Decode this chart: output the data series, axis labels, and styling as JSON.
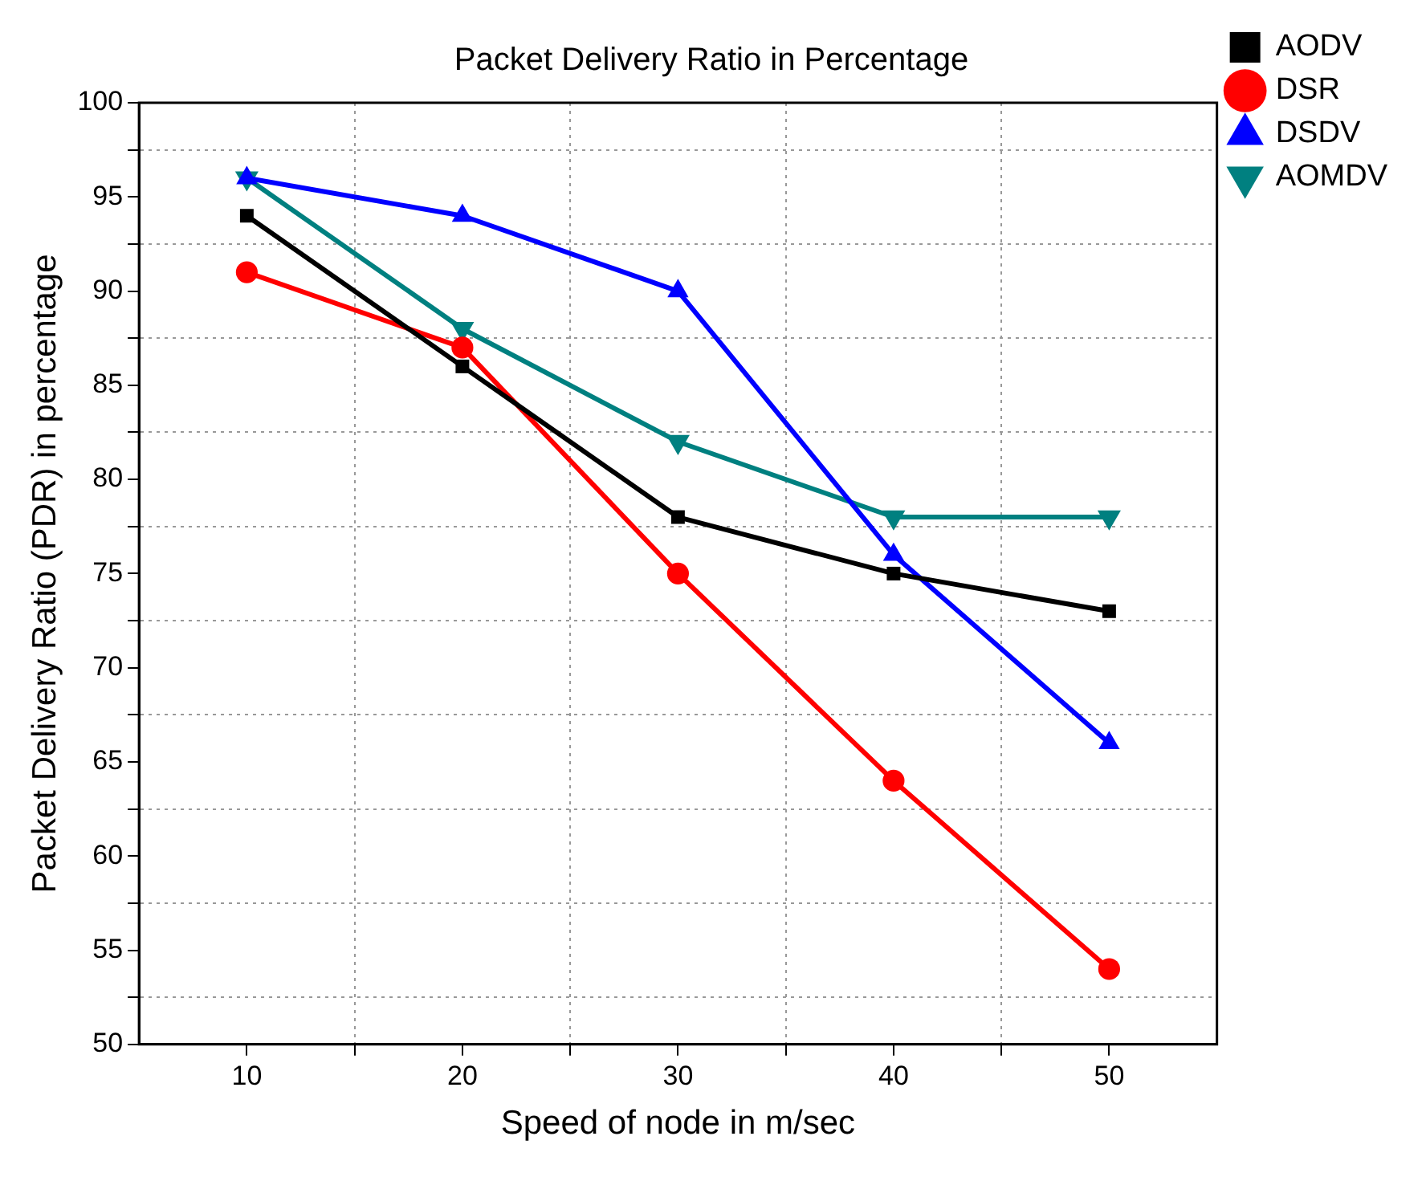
{
  "chart_data": {
    "type": "line",
    "title": "Packet Delivery Ratio in Percentage",
    "xlabel": "Speed of node in m/sec",
    "ylabel": "Packet Delivery Ratio (PDR) in percentage",
    "x": [
      10,
      20,
      30,
      40,
      50
    ],
    "series": [
      {
        "name": "AODV",
        "color": "#000000",
        "marker": "square",
        "values": [
          94,
          86,
          78,
          75,
          73
        ]
      },
      {
        "name": "DSR",
        "color": "#ff0000",
        "marker": "circle",
        "values": [
          91,
          87,
          75,
          64,
          54
        ]
      },
      {
        "name": "DSDV",
        "color": "#0000ff",
        "marker": "triangle",
        "values": [
          96,
          94,
          90,
          76,
          66
        ]
      },
      {
        "name": "AOMDV",
        "color": "#008080",
        "marker": "triangle-down",
        "values": [
          96,
          88,
          82,
          78,
          78
        ]
      }
    ],
    "xlim": [
      5,
      55
    ],
    "xticks": [
      10,
      {
        "value": 15,
        "label": null
      },
      20,
      {
        "value": 25,
        "label": null
      },
      30,
      {
        "value": 35,
        "label": null
      },
      40,
      {
        "value": 45,
        "label": null
      },
      50
    ],
    "ylim": [
      50,
      100
    ],
    "yticks": [
      50,
      {
        "value": 52.5,
        "label": null
      },
      55,
      {
        "value": 57.5,
        "label": null
      },
      60,
      {
        "value": 62.5,
        "label": null
      },
      65,
      {
        "value": 67.5,
        "label": null
      },
      70,
      {
        "value": 72.5,
        "label": null
      },
      75,
      {
        "value": 77.5,
        "label": null
      },
      80,
      {
        "value": 82.5,
        "label": null
      },
      85,
      {
        "value": 87.5,
        "label": null
      },
      90,
      {
        "value": 92.5,
        "label": null
      },
      95,
      {
        "value": 97.5,
        "label": null
      },
      100
    ],
    "grid": true,
    "legend": "top right",
    "line_style": "solid"
  }
}
